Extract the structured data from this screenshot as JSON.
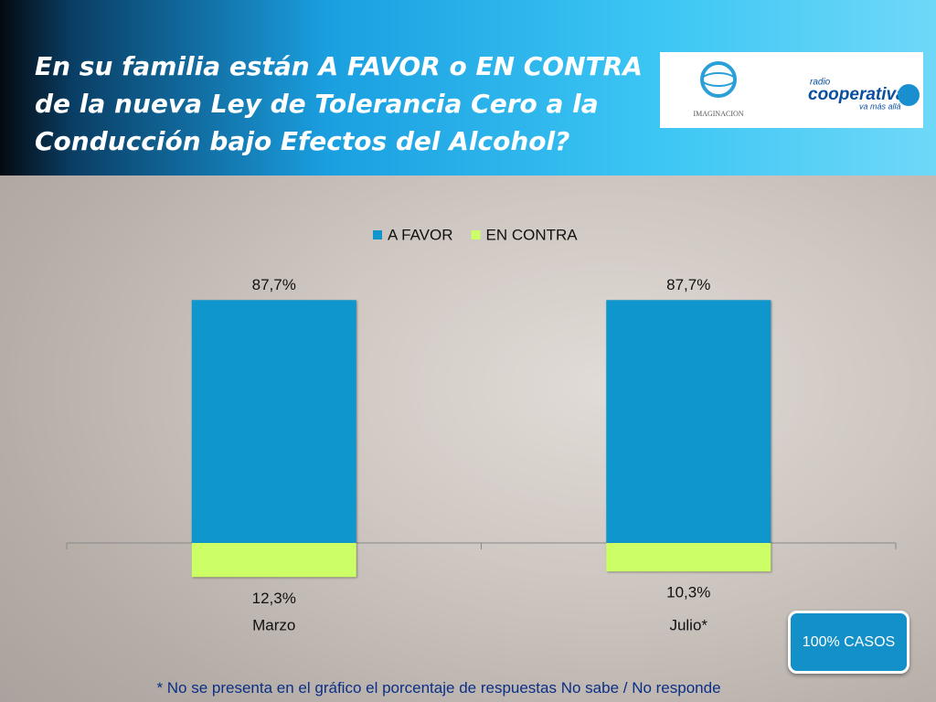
{
  "chart_data": {
    "type": "bar",
    "title": "En su familia están A FAVOR o EN CONTRA\nde la nueva Ley de Tolerancia Cero a la\nConducción bajo Efectos del Alcohol?",
    "categories": [
      "Marzo",
      "Julio*"
    ],
    "series": [
      {
        "name": "A FAVOR",
        "color": "#0f96cc",
        "values": [
          87.7,
          87.7
        ],
        "value_labels": [
          "87,7%",
          "87,7%"
        ]
      },
      {
        "name": "EN CONTRA",
        "color": "#ccff66",
        "values": [
          12.3,
          10.3
        ],
        "value_labels": [
          "12,3%",
          "10,3%"
        ]
      }
    ],
    "diverging": true,
    "legend": "top",
    "note": "100% CASOS",
    "footnote": "*  No se presenta en el gráfico el porcentaje de respuestas No sabe / No responde"
  },
  "logos": {
    "left": "IMAGINACION",
    "right": [
      "radio",
      "cooperativa",
      "va más allá"
    ]
  }
}
